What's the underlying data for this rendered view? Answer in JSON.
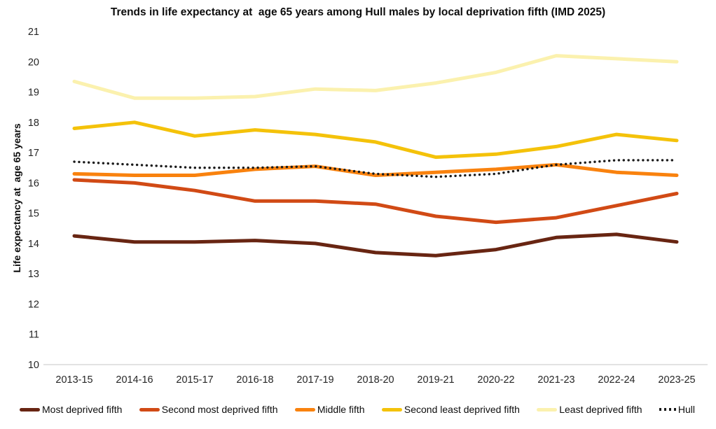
{
  "page": {
    "background_color": "#FFFFFF"
  },
  "chart_data": {
    "type": "line",
    "title": "Trends in life expectancy at  age 65 years among Hull males by local deprivation fifth (IMD 2025)",
    "xlabel": "",
    "ylabel": "Life expectancy at  age 65 years",
    "ylim": [
      10,
      21
    ],
    "yticks": [
      10,
      11,
      12,
      13,
      14,
      15,
      16,
      17,
      18,
      19,
      20,
      21
    ],
    "grid": false,
    "legend_position": "bottom",
    "axis_color": "#D9D9D9",
    "text_color": "#262626",
    "categories": [
      "2013-15",
      "2014-16",
      "2015-17",
      "2016-18",
      "2017-19",
      "2018-20",
      "2019-21",
      "2020-22",
      "2021-23",
      "2022-24",
      "2023-25"
    ],
    "series": [
      {
        "name": "Most deprived fifth",
        "color": "#682512",
        "style": "solid",
        "values": [
          14.25,
          14.05,
          14.05,
          14.1,
          14.0,
          13.7,
          13.6,
          13.8,
          14.2,
          14.3,
          14.05
        ]
      },
      {
        "name": "Second most deprived fifth",
        "color": "#D14A15",
        "style": "solid",
        "values": [
          16.1,
          16.0,
          15.75,
          15.4,
          15.4,
          15.3,
          14.9,
          14.7,
          14.85,
          15.25,
          15.65
        ]
      },
      {
        "name": "Middle fifth",
        "color": "#F9820E",
        "style": "solid",
        "values": [
          16.3,
          16.25,
          16.25,
          16.45,
          16.55,
          16.25,
          16.35,
          16.45,
          16.6,
          16.35,
          16.25
        ]
      },
      {
        "name": "Second least deprived fifth",
        "color": "#F4C20A",
        "style": "solid",
        "values": [
          17.8,
          18.0,
          17.55,
          17.75,
          17.6,
          17.35,
          16.85,
          16.95,
          17.2,
          17.6,
          17.4
        ]
      },
      {
        "name": "Least deprived fifth",
        "color": "#FBF1AE",
        "style": "solid",
        "values": [
          19.35,
          18.8,
          18.8,
          18.85,
          19.1,
          19.05,
          19.3,
          19.65,
          20.2,
          20.1,
          20.0
        ]
      },
      {
        "name": "Hull",
        "color": "#1A1A1A",
        "style": "dotted",
        "values": [
          16.7,
          16.6,
          16.5,
          16.5,
          16.55,
          16.3,
          16.2,
          16.3,
          16.6,
          16.75,
          16.75
        ]
      }
    ]
  }
}
